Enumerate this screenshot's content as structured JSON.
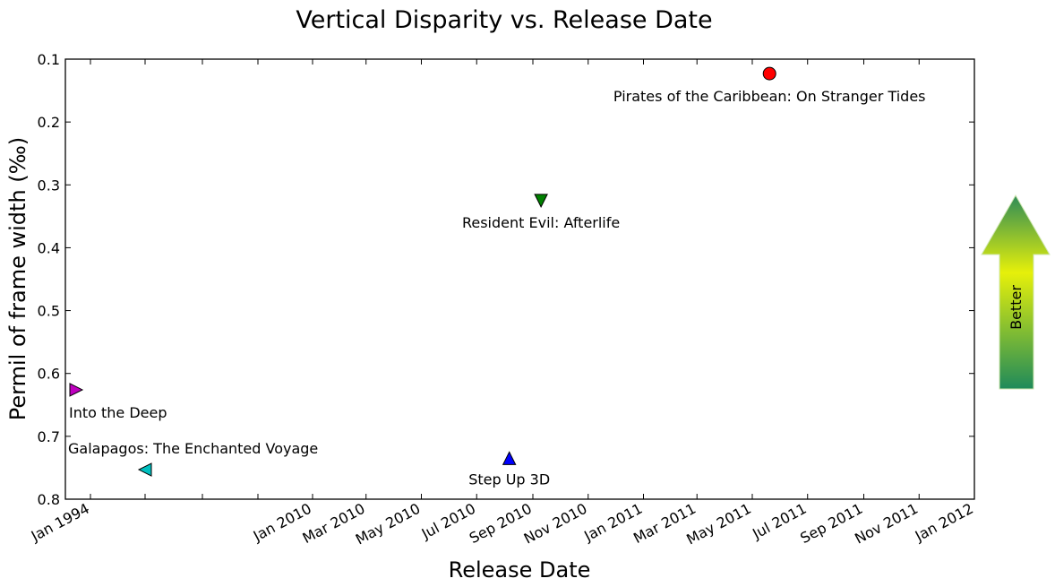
{
  "chart_data": {
    "type": "scatter",
    "title": "Vertical Disparity vs. Release Date",
    "xlabel": "Release Date",
    "ylabel": "Permil of frame width (‰)",
    "y_inverted": true,
    "ylim": [
      0.1,
      0.8
    ],
    "yticks": [
      0.1,
      0.2,
      0.3,
      0.4,
      0.5,
      0.6,
      0.7,
      0.8
    ],
    "x_ticks_labeled": [
      "Jan 1994",
      "Jan 2010",
      "Mar 2010",
      "May 2010",
      "Jul 2010",
      "Sep 2010",
      "Nov 2010",
      "Jan 2011",
      "Mar 2011",
      "May 2011",
      "Jul 2011",
      "Sep 2011",
      "Nov 2011",
      "Jan 2012"
    ],
    "points": [
      {
        "label": "Pirates of the Caribbean: On Stranger Tides",
        "x": "2011-05-20",
        "y": 0.123,
        "marker": "circle",
        "color": "#ff0000"
      },
      {
        "label": "Resident Evil: Afterlife",
        "x": "2010-09-10",
        "y": 0.325,
        "marker": "triangle-down",
        "color": "#008000"
      },
      {
        "label": "Step Up 3D",
        "x": "2010-08-06",
        "y": 0.735,
        "marker": "triangle-up",
        "color": "#0000ff"
      },
      {
        "label": "Into the Deep",
        "x": "1994-01-01",
        "y": 0.626,
        "marker": "triangle-right",
        "color": "#bf00bf"
      },
      {
        "label": "Galapagos: The Enchanted Voyage",
        "x": "1999-10-01",
        "y": 0.753,
        "marker": "triangle-left",
        "color": "#00bfbf"
      }
    ]
  },
  "side_arrow": {
    "label": "Better",
    "direction": "up"
  }
}
